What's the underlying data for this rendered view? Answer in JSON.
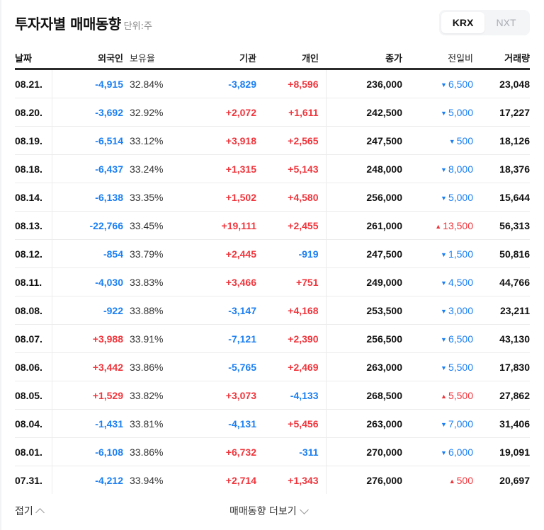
{
  "header": {
    "title": "투자자별 매매동향",
    "unit": "단위:주",
    "market_tabs": [
      {
        "label": "KRX",
        "active": true
      },
      {
        "label": "NXT",
        "active": false
      }
    ]
  },
  "table": {
    "columns": {
      "date": "날짜",
      "foreign": "외국인",
      "ratio": "보유율",
      "institution": "기관",
      "individual": "개인",
      "close": "종가",
      "change": "전일비",
      "volume": "거래량"
    },
    "rows": [
      {
        "date": "08.21.",
        "foreign": "-4,915",
        "ratio": "32.84%",
        "institution": "-3,829",
        "individual": "+8,596",
        "close": "236,000",
        "change": "6,500",
        "change_dir": "down",
        "volume": "23,048"
      },
      {
        "date": "08.20.",
        "foreign": "-3,692",
        "ratio": "32.92%",
        "institution": "+2,072",
        "individual": "+1,611",
        "close": "242,500",
        "change": "5,000",
        "change_dir": "down",
        "volume": "17,227"
      },
      {
        "date": "08.19.",
        "foreign": "-6,514",
        "ratio": "33.12%",
        "institution": "+3,918",
        "individual": "+2,565",
        "close": "247,500",
        "change": "500",
        "change_dir": "down",
        "volume": "18,126"
      },
      {
        "date": "08.18.",
        "foreign": "-6,437",
        "ratio": "33.24%",
        "institution": "+1,315",
        "individual": "+5,143",
        "close": "248,000",
        "change": "8,000",
        "change_dir": "down",
        "volume": "18,376"
      },
      {
        "date": "08.14.",
        "foreign": "-6,138",
        "ratio": "33.35%",
        "institution": "+1,502",
        "individual": "+4,580",
        "close": "256,000",
        "change": "5,000",
        "change_dir": "down",
        "volume": "15,644"
      },
      {
        "date": "08.13.",
        "foreign": "-22,766",
        "ratio": "33.45%",
        "institution": "+19,111",
        "individual": "+2,455",
        "close": "261,000",
        "change": "13,500",
        "change_dir": "up",
        "volume": "56,313"
      },
      {
        "date": "08.12.",
        "foreign": "-854",
        "ratio": "33.79%",
        "institution": "+2,445",
        "individual": "-919",
        "close": "247,500",
        "change": "1,500",
        "change_dir": "down",
        "volume": "50,816"
      },
      {
        "date": "08.11.",
        "foreign": "-4,030",
        "ratio": "33.83%",
        "institution": "+3,466",
        "individual": "+751",
        "close": "249,000",
        "change": "4,500",
        "change_dir": "down",
        "volume": "44,766"
      },
      {
        "date": "08.08.",
        "foreign": "-922",
        "ratio": "33.88%",
        "institution": "-3,147",
        "individual": "+4,168",
        "close": "253,500",
        "change": "3,000",
        "change_dir": "down",
        "volume": "23,211"
      },
      {
        "date": "08.07.",
        "foreign": "+3,988",
        "ratio": "33.91%",
        "institution": "-7,121",
        "individual": "+2,390",
        "close": "256,500",
        "change": "6,500",
        "change_dir": "down",
        "volume": "43,130"
      },
      {
        "date": "08.06.",
        "foreign": "+3,442",
        "ratio": "33.86%",
        "institution": "-5,765",
        "individual": "+2,469",
        "close": "263,000",
        "change": "5,500",
        "change_dir": "down",
        "volume": "17,830"
      },
      {
        "date": "08.05.",
        "foreign": "+1,529",
        "ratio": "33.82%",
        "institution": "+3,073",
        "individual": "-4,133",
        "close": "268,500",
        "change": "5,500",
        "change_dir": "up",
        "volume": "27,862"
      },
      {
        "date": "08.04.",
        "foreign": "-1,431",
        "ratio": "33.81%",
        "institution": "-4,131",
        "individual": "+5,456",
        "close": "263,000",
        "change": "7,000",
        "change_dir": "down",
        "volume": "31,406"
      },
      {
        "date": "08.01.",
        "foreign": "-6,108",
        "ratio": "33.86%",
        "institution": "+6,732",
        "individual": "-311",
        "close": "270,000",
        "change": "6,000",
        "change_dir": "down",
        "volume": "19,091"
      },
      {
        "date": "07.31.",
        "foreign": "-4,212",
        "ratio": "33.94%",
        "institution": "+2,714",
        "individual": "+1,343",
        "close": "276,000",
        "change": "500",
        "change_dir": "up",
        "volume": "20,697"
      }
    ]
  },
  "footer": {
    "collapse_label": "접기",
    "more_label": "매매동향 더보기"
  },
  "colors": {
    "up": "#f0353c",
    "down": "#1b7ff2"
  }
}
